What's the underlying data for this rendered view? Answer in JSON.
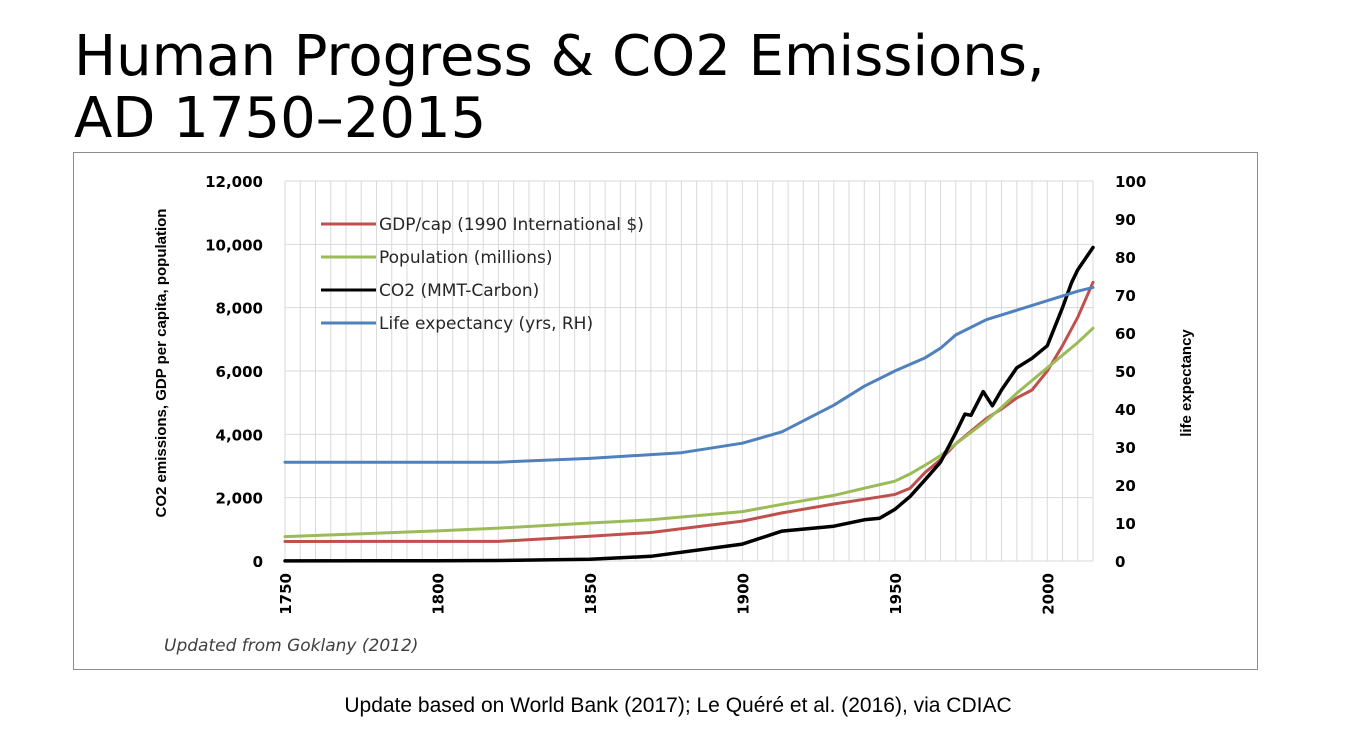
{
  "title_lines": [
    "Human Progress & CO2 Emissions,",
    "AD 1750–2015"
  ],
  "source_note": "Update based on World Bank (2017); Le Quéré et al. (2016), via CDIAC",
  "chart_data": {
    "type": "line",
    "title": "",
    "xlabel": "",
    "ylabel": "CO2 emissions, GDP per capita, population",
    "y2label": "life expectancy",
    "xlim": [
      1750,
      2015
    ],
    "ylim": [
      0,
      12000
    ],
    "y2lim": [
      0,
      100
    ],
    "x_ticks": [
      "1750",
      "1800",
      "1850",
      "1900",
      "1950",
      "2000"
    ],
    "y_ticks": [
      "0",
      "2,000",
      "4,000",
      "6,000",
      "8,000",
      "10,000",
      "12,000"
    ],
    "y2_ticks": [
      "0",
      "10",
      "20",
      "30",
      "40",
      "50",
      "60",
      "70",
      "80",
      "90",
      "100"
    ],
    "grid": true,
    "legend_position": "top-left",
    "annotation": "Updated from Goklany (2012)",
    "series": [
      {
        "name": "GDP/cap (1990 International $)",
        "axis": "left",
        "color": "#c0504d",
        "x": [
          1750,
          1800,
          1820,
          1850,
          1870,
          1900,
          1913,
          1930,
          1940,
          1950,
          1955,
          1960,
          1965,
          1970,
          1975,
          1980,
          1985,
          1990,
          1995,
          2000,
          2005,
          2010,
          2015
        ],
        "y": [
          615,
          620,
          620,
          780,
          900,
          1260,
          1520,
          1800,
          1950,
          2100,
          2300,
          2800,
          3200,
          3700,
          4100,
          4500,
          4800,
          5150,
          5400,
          6000,
          6800,
          7700,
          8800
        ]
      },
      {
        "name": "Population (millions)",
        "axis": "left",
        "color": "#9bbb59",
        "x": [
          1750,
          1800,
          1820,
          1850,
          1870,
          1900,
          1913,
          1930,
          1940,
          1950,
          1955,
          1960,
          1965,
          1970,
          1975,
          1980,
          1985,
          1990,
          1995,
          2000,
          2005,
          2010,
          2015
        ],
        "y": [
          770,
          950,
          1040,
          1200,
          1300,
          1560,
          1790,
          2070,
          2300,
          2520,
          2750,
          3030,
          3330,
          3700,
          4060,
          4430,
          4850,
          5300,
          5700,
          6100,
          6500,
          6900,
          7350
        ]
      },
      {
        "name": "CO2 (MMT-Carbon)",
        "axis": "left",
        "color": "#000000",
        "x": [
          1750,
          1800,
          1820,
          1850,
          1870,
          1900,
          1913,
          1930,
          1940,
          1945,
          1950,
          1955,
          1960,
          1965,
          1970,
          1973,
          1975,
          1979,
          1982,
          1985,
          1990,
          1995,
          2000,
          2005,
          2008,
          2010,
          2015
        ],
        "y": [
          3,
          8,
          15,
          54,
          150,
          534,
          943,
          1100,
          1300,
          1350,
          1630,
          2040,
          2570,
          3120,
          4050,
          4640,
          4600,
          5350,
          4900,
          5400,
          6100,
          6400,
          6800,
          8000,
          8800,
          9200,
          9900
        ]
      },
      {
        "name": "Life expectancy (yrs, RH)",
        "axis": "right",
        "color": "#4f81bd",
        "x": [
          1750,
          1800,
          1820,
          1850,
          1880,
          1900,
          1913,
          1930,
          1940,
          1950,
          1960,
          1965,
          1970,
          1980,
          1990,
          2000,
          2010,
          2015
        ],
        "y": [
          26,
          26,
          26,
          27,
          28.5,
          31,
          34,
          41,
          46,
          50,
          53.5,
          56,
          59.5,
          63.5,
          66,
          68.5,
          71,
          72
        ]
      }
    ]
  }
}
